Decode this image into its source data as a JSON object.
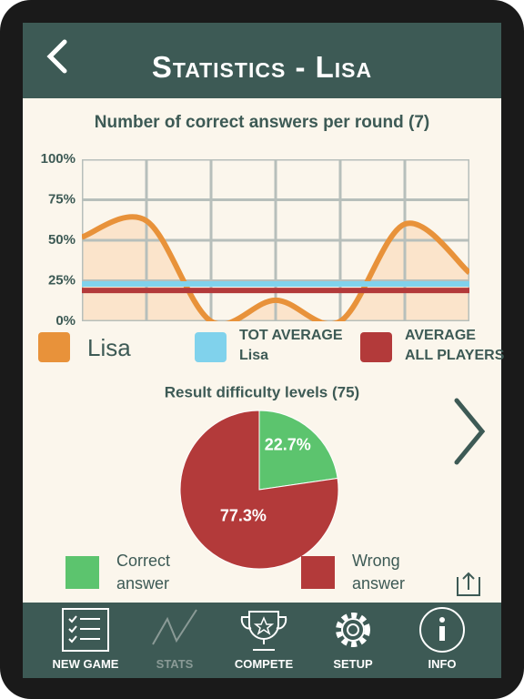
{
  "header": {
    "title": "Statistics - Lisa"
  },
  "charts": [
    {
      "type": "line",
      "title": "Number of correct answers per round (7)",
      "categories": [
        null,
        null,
        null,
        null,
        null,
        null,
        null
      ],
      "ylim": [
        0,
        100
      ],
      "yticks": [
        {
          "value": 0,
          "label": "0%"
        },
        {
          "value": 25,
          "label": "25%"
        },
        {
          "value": 50,
          "label": "50%"
        },
        {
          "value": 75,
          "label": "75%"
        },
        {
          "value": 100,
          "label": "100%"
        }
      ],
      "grid": true,
      "series": [
        {
          "name": "Lisa",
          "color": "#e8923a",
          "fill": "#fbe4cb",
          "values": [
            52,
            62,
            0,
            13,
            0,
            60,
            30
          ]
        },
        {
          "name": "TOT AVERAGE\nLisa",
          "color": "#80d2ec",
          "values": [
            23,
            23,
            23,
            23,
            23,
            23,
            23
          ]
        },
        {
          "name": "AVERAGE\nALL PLAYERS",
          "color": "#b33a3a",
          "values": [
            19,
            19,
            19,
            19,
            19,
            19,
            19
          ]
        }
      ]
    },
    {
      "type": "pie",
      "title": "Result difficulty levels (75)",
      "categories": [
        "Correct\nanswer",
        "Wrong\nanswer"
      ],
      "values": [
        22.7,
        77.3
      ],
      "value_labels": [
        "22.7%",
        "77.3%"
      ],
      "colors": [
        "#5cc46e",
        "#b33a3a"
      ]
    }
  ],
  "nav": [
    "NEW GAME",
    "STATS",
    "COMPETE",
    "SETUP",
    "INFO"
  ]
}
